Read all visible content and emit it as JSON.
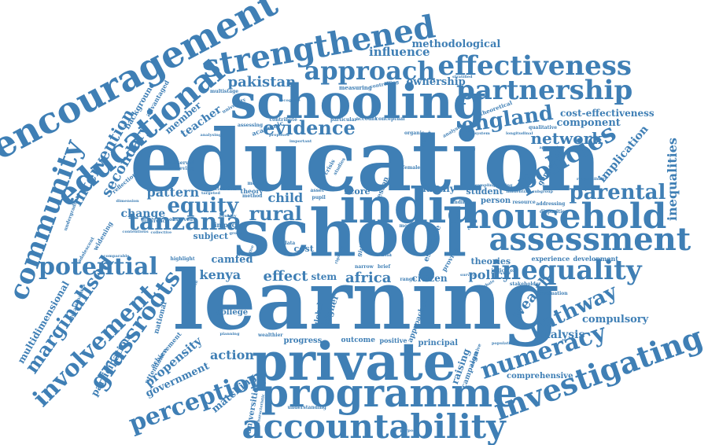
{
  "colors": {
    "word": "#3f7fb5",
    "background": "#ffffff"
  },
  "words": {
    "education": "education",
    "school": "school",
    "learning": "learning",
    "schooling": "schooling",
    "private": "private",
    "programme": "programme",
    "accountability": "accountability",
    "india": "india",
    "household": "household",
    "assessment": "assessment",
    "inequality": "inequality",
    "encouragement": "encouragement",
    "educational": "educational",
    "strengthened": "strengthened",
    "approach": "approach",
    "effectiveness": "effectiveness",
    "partnership": "partnership",
    "community": "community",
    "investigating": "investigating",
    "policies": "policies",
    "parental": "parental",
    "tanzania": "tanzania",
    "potential": "potential",
    "involvement": "involvement",
    "grassroots": "grassroots",
    "perception": "perception",
    "numeracy": "numeracy",
    "pathway": "pathway",
    "england": "england",
    "evidence": "evidence",
    "equity": "equity",
    "rural": "rural",
    "marginalised": "marginalised",
    "intervention": "intervention",
    "secondary": "secondary",
    "pakistan": "pakistan",
    "influence": "influence",
    "methodological": "methodological",
    "ownership": "ownership",
    "network": "network",
    "component": "component",
    "cost_effectiveness": "cost-effectiveness",
    "implication": "implication",
    "inequalities": "inequalities",
    "africa": "africa",
    "effect": "effect",
    "kenya": "kenya",
    "camfed": "camfed",
    "policy": "policy",
    "wealth": "wealth",
    "compulsory": "compulsory",
    "analysis": "analysis",
    "propensity": "propensity",
    "government": "government",
    "action": "action",
    "matching": "matching",
    "comprehensive": "comprehensive",
    "pattern": "pattern",
    "change": "change",
    "teacher": "teacher",
    "member": "member",
    "child": "child",
    "family": "family",
    "student": "student",
    "person": "person",
    "citizen": "citizen",
    "stem": "stem",
    "cost": "cost",
    "score": "score",
    "subject": "subject",
    "outcome": "outcome",
    "positive": "positive",
    "principal": "principal",
    "progress": "progress",
    "raising": "raising",
    "campaign": "campaign",
    "universities": "universities",
    "multidimensional": "multidimensional",
    "participation": "participation",
    "attendance": "attendance",
    "achievement": "achievement",
    "national": "national",
    "college": "college",
    "theories": "theories",
    "experience": "experience",
    "development": "development",
    "evaluation": "evaluation",
    "gender": "gender",
    "responsibility": "responsibility",
    "qualitative": "qualitative",
    "longitudinal": "longitudinal",
    "theoretical": "theoretical",
    "background": "background",
    "advantaged": "advantaged",
    "multistage": "multistage",
    "university": "university",
    "measuring": "measuring",
    "controlling": "controlling",
    "particular": "particular",
    "account": "account",
    "conceptual": "conceptual",
    "organic": "organic",
    "analyse": "analyse",
    "appropriate": "appropriate",
    "reflection": "reflection",
    "widening": "widening",
    "impact": "impact",
    "higher": "higher",
    "global": "global",
    "approaches": "approaches",
    "range": "range",
    "estimate": "estimate",
    "provide": "provide",
    "indicator": "indicator",
    "addressing": "addressing",
    "disparities": "disparities",
    "highlight": "highlight",
    "comparable": "comparable",
    "contentious": "contentious",
    "collective": "collective",
    "difference": "difference",
    "observed": "observed",
    "country": "country",
    "model": "model",
    "asset": "asset",
    "data": "data",
    "theory": "theory",
    "method": "method",
    "academic": "academic",
    "contribute": "contribute",
    "assessing": "assessing",
    "analysing": "analysing",
    "unobserved": "unobserved",
    "achieving": "achieving",
    "attention": "attention",
    "targeted": "targeted",
    "lesson": "lesson",
    "crisis": "crisis",
    "studies": "studies",
    "sampling": "sampling",
    "framing": "framing",
    "finding": "finding",
    "female": "female",
    "resource": "resource",
    "stakeholder": "stakeholder",
    "population": "population",
    "understanding": "understanding",
    "characteristic": "characteristic",
    "wealthier": "wealthier",
    "planning": "planning",
    "purpose": "purpose",
    "brief": "brief",
    "narrow": "narrow",
    "dimension": "dimension",
    "undergraduate": "undergraduate",
    "adolescent": "adolescent",
    "educationalists": "educationalists",
    "cognitive": "cognitive",
    "debate": "debate",
    "subgroup": "subgroup",
    "recognise": "recognise",
    "important": "important",
    "proposed": "proposed",
    "comparison": "comparison",
    "pupil": "pupil",
    "more": "more",
    "leading": "leading",
    "survey": "survey",
    "asia": "asia",
    "girl": "girl",
    "rigorous": "rigorous",
    "group": "group",
    "influential": "influential",
    "stratified": "stratified",
    "system": "system",
    "primary": "primary",
    "relative": "relative",
    "costly": "costly"
  }
}
